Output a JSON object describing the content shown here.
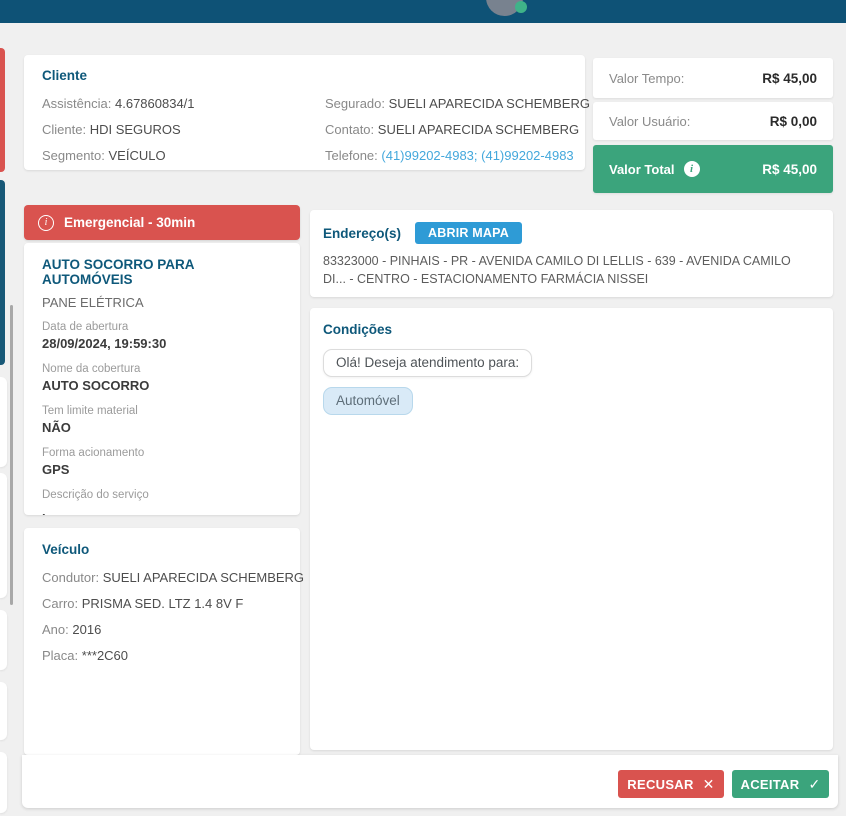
{
  "client_card": {
    "title": "Cliente",
    "left": [
      {
        "label": "Assistência:",
        "value": "4.67860834/1"
      },
      {
        "label": "Cliente:",
        "value": "HDI SEGUROS"
      },
      {
        "label": "Segmento:",
        "value": "VEÍCULO"
      }
    ],
    "right": [
      {
        "label": "Segurado:",
        "value": "SUELI APARECIDA SCHEMBERG"
      },
      {
        "label": "Contato:",
        "value": "SUELI APARECIDA SCHEMBERG"
      },
      {
        "label": "Telefone:",
        "value": "(41)99202-4983; (41)99202-4983"
      }
    ]
  },
  "valores": {
    "rows": [
      {
        "label": "Valor Tempo:",
        "value": "R$ 45,00"
      },
      {
        "label": "Valor Usuário:",
        "value": "R$ 0,00"
      }
    ],
    "total": {
      "label": "Valor Total",
      "value": "R$ 45,00",
      "info_icon": "i"
    }
  },
  "service": {
    "banner": "Emergencial - 30min",
    "banner_icon": "i",
    "title": "AUTO SOCORRO PARA AUTOMÓVEIS",
    "subtitle": "PANE ELÉTRICA",
    "fields": [
      {
        "label": "Data de abertura",
        "value": "28/09/2024, 19:59:30"
      },
      {
        "label": "Nome da cobertura",
        "value": "AUTO SOCORRO"
      },
      {
        "label": "Tem limite material",
        "value": "NÃO"
      },
      {
        "label": "Forma acionamento",
        "value": "GPS"
      },
      {
        "label": "Descrição do serviço",
        "value": "."
      }
    ]
  },
  "vehicle": {
    "title": "Veículo",
    "fields": [
      {
        "label": "Condutor:",
        "value": "SUELI APARECIDA SCHEMBERG"
      },
      {
        "label": "Carro:",
        "value": "PRISMA SED. LTZ 1.4 8V F"
      },
      {
        "label": "Ano:",
        "value": "2016"
      },
      {
        "label": "Placa:",
        "value": "***2C60"
      }
    ]
  },
  "address": {
    "title": "Endereço(s)",
    "map_button": "ABRIR MAPA",
    "text": "83323000 - PINHAIS - PR - AVENIDA CAMILO DI LELLIS - 639 - AVENIDA CAMILO DI... - CENTRO - ESTACIONAMENTO FARMÁCIA NISSEI"
  },
  "conditions": {
    "title": "Condições",
    "messages": [
      "Olá! Deseja atendimento para:",
      "Automóvel"
    ]
  },
  "footer": {
    "reject": "RECUSAR",
    "reject_icon": "✕",
    "accept": "ACEITAR",
    "accept_icon": "✓"
  },
  "colors": {
    "topbar": "#0e5276",
    "danger": "#d9534f",
    "success": "#3ba47c",
    "map_button": "#2e9bd6",
    "heading": "#0e587a",
    "link": "#44a8dc",
    "background": "#f0f0f0"
  }
}
